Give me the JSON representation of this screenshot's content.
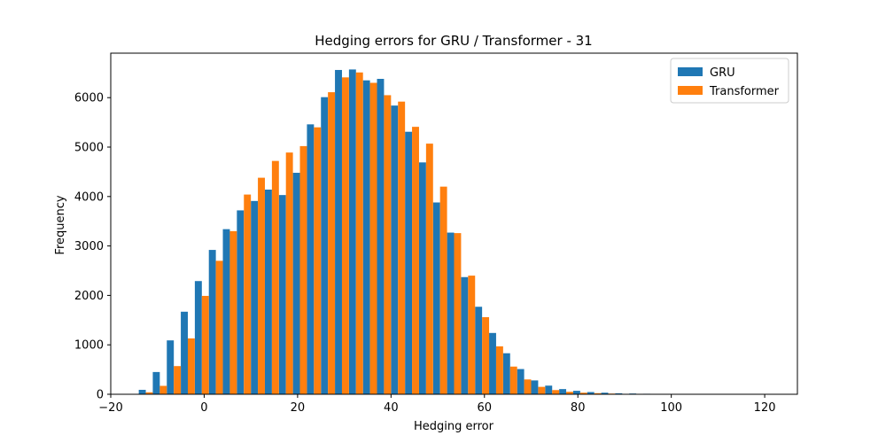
{
  "chart_data": {
    "type": "bar",
    "title": "Hedging errors for GRU / Transformer - 31",
    "xlabel": "Hedging error",
    "ylabel": "Frequency",
    "xlim": [
      -20,
      127
    ],
    "ylim": [
      0,
      6900
    ],
    "xticks": [
      -20,
      0,
      20,
      40,
      60,
      80,
      100,
      120
    ],
    "yticks": [
      0,
      1000,
      2000,
      3000,
      4000,
      5000,
      6000
    ],
    "bin_start": -14.0,
    "bin_width": 3.0,
    "legend": {
      "position": "top-right"
    },
    "grid": false,
    "series": [
      {
        "name": "GRU",
        "color": "#1f77b4",
        "values": [
          90,
          450,
          1090,
          1670,
          2290,
          2920,
          3340,
          3720,
          3910,
          4140,
          4030,
          4480,
          5460,
          6010,
          6560,
          6570,
          6350,
          6380,
          5840,
          5310,
          4690,
          3880,
          3270,
          2370,
          1770,
          1240,
          830,
          510,
          280,
          175,
          105,
          70,
          45,
          32,
          20,
          15,
          10,
          8,
          5,
          3,
          2,
          1,
          1
        ]
      },
      {
        "name": "Transformer",
        "color": "#ff7f0e",
        "values": [
          40,
          170,
          570,
          1130,
          1990,
          2700,
          3300,
          4040,
          4380,
          4720,
          4890,
          5020,
          5400,
          6110,
          6410,
          6510,
          6300,
          6050,
          5920,
          5410,
          5070,
          4200,
          3260,
          2400,
          1560,
          970,
          560,
          300,
          150,
          85,
          50,
          32,
          22,
          14,
          9,
          6,
          4,
          3,
          2,
          1,
          1,
          1,
          0
        ]
      }
    ]
  }
}
